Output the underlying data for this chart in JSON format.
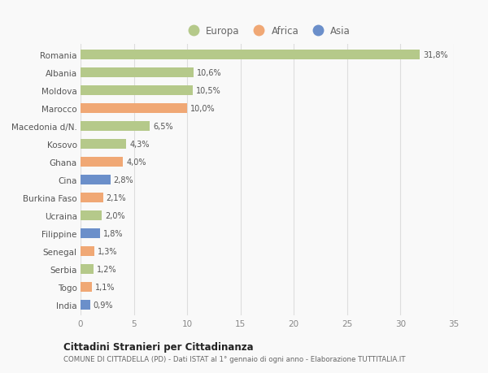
{
  "countries": [
    "Romania",
    "Albania",
    "Moldova",
    "Marocco",
    "Macedonia d/N.",
    "Kosovo",
    "Ghana",
    "Cina",
    "Burkina Faso",
    "Ucraina",
    "Filippine",
    "Senegal",
    "Serbia",
    "Togo",
    "India"
  ],
  "values": [
    31.8,
    10.6,
    10.5,
    10.0,
    6.5,
    4.3,
    4.0,
    2.8,
    2.1,
    2.0,
    1.8,
    1.3,
    1.2,
    1.1,
    0.9
  ],
  "labels": [
    "31,8%",
    "10,6%",
    "10,5%",
    "10,0%",
    "6,5%",
    "4,3%",
    "4,0%",
    "2,8%",
    "2,1%",
    "2,0%",
    "1,8%",
    "1,3%",
    "1,2%",
    "1,1%",
    "0,9%"
  ],
  "continents": [
    "Europa",
    "Europa",
    "Europa",
    "Africa",
    "Europa",
    "Europa",
    "Africa",
    "Asia",
    "Africa",
    "Europa",
    "Asia",
    "Africa",
    "Europa",
    "Africa",
    "Asia"
  ],
  "colors": {
    "Europa": "#b5c98a",
    "Africa": "#f0a875",
    "Asia": "#6b8fca"
  },
  "title1": "Cittadini Stranieri per Cittadinanza",
  "title2": "COMUNE DI CITTADELLA (PD) - Dati ISTAT al 1° gennaio di ogni anno - Elaborazione TUTTITALIA.IT",
  "xlim": [
    0,
    35
  ],
  "xticks": [
    0,
    5,
    10,
    15,
    20,
    25,
    30,
    35
  ],
  "background_color": "#f9f9f9",
  "grid_color": "#dddddd",
  "bar_height": 0.55
}
